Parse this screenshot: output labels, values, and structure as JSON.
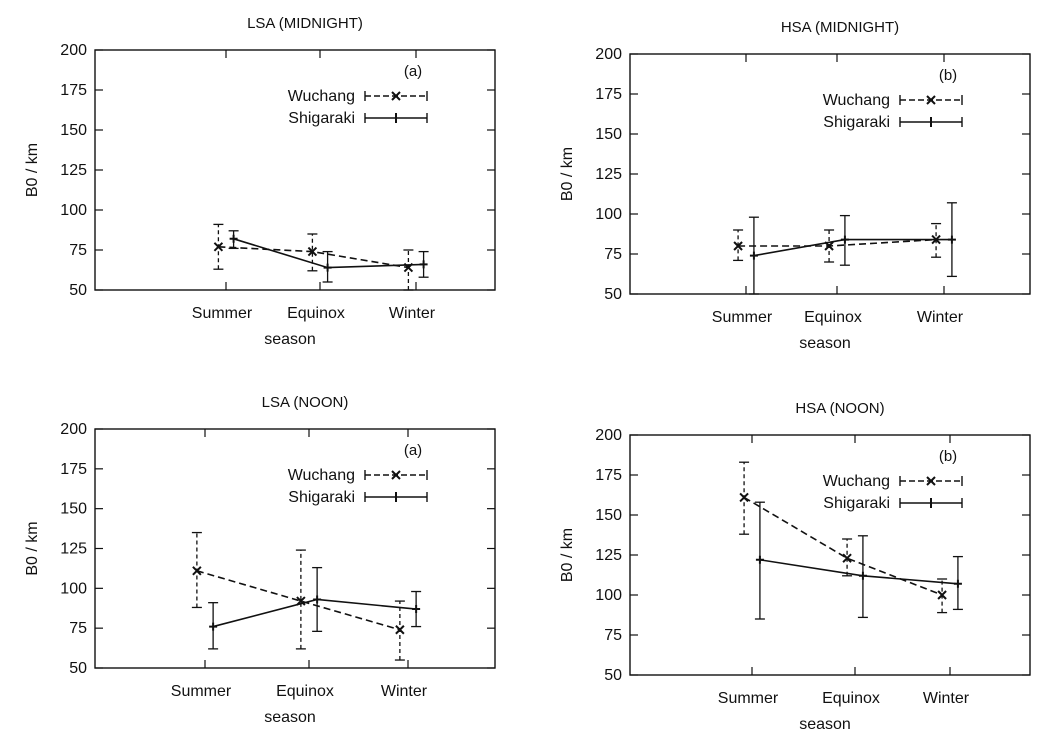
{
  "colors": {
    "ink": "#111111",
    "background": "#ffffff"
  },
  "chart_data": [
    {
      "type": "line",
      "title": "LSA (MIDNIGHT)",
      "panel_label": "(a)",
      "xlabel": "season",
      "ylabel": "B0 / km",
      "categories": [
        "Summer",
        "Equinox",
        "Winter"
      ],
      "ylim": [
        50,
        200
      ],
      "yticks": [
        50,
        75,
        100,
        125,
        150,
        175,
        200
      ],
      "legend": "top-right",
      "grid": false,
      "series": [
        {
          "name": "Wuchang",
          "style": "dashed",
          "marker": "x",
          "x_offset": -0.08,
          "values": [
            77,
            74,
            64
          ],
          "err_low": [
            63,
            62,
            50
          ],
          "err_high": [
            91,
            85,
            75
          ]
        },
        {
          "name": "Shigaraki",
          "style": "solid",
          "marker": "+",
          "x_offset": 0.08,
          "values": [
            82,
            64,
            66
          ],
          "err_low": [
            76,
            55,
            58
          ],
          "err_high": [
            87,
            74,
            74
          ]
        }
      ]
    },
    {
      "type": "line",
      "title": "HSA (MIDNIGHT)",
      "panel_label": "(b)",
      "xlabel": "season",
      "ylabel": "B0 / km",
      "categories": [
        "Summer",
        "Equinox",
        "Winter"
      ],
      "ylim": [
        50,
        200
      ],
      "yticks": [
        50,
        75,
        100,
        125,
        150,
        175,
        200
      ],
      "legend": "top-right",
      "grid": false,
      "series": [
        {
          "name": "Wuchang",
          "style": "dashed",
          "marker": "x",
          "x_offset": -0.08,
          "values": [
            80,
            80,
            84
          ],
          "err_low": [
            71,
            70,
            73
          ],
          "err_high": [
            90,
            90,
            94
          ]
        },
        {
          "name": "Shigaraki",
          "style": "solid",
          "marker": "+",
          "x_offset": 0.08,
          "values": [
            74,
            84,
            84
          ],
          "err_low": [
            50,
            68,
            61
          ],
          "err_high": [
            98,
            99,
            107
          ]
        }
      ]
    },
    {
      "type": "line",
      "title": "LSA (NOON)",
      "panel_label": "(a)",
      "xlabel": "season",
      "ylabel": "B0 / km",
      "categories": [
        "Summer",
        "Equinox",
        "Winter"
      ],
      "ylim": [
        50,
        200
      ],
      "yticks": [
        50,
        75,
        100,
        125,
        150,
        175,
        200
      ],
      "legend": "top-right",
      "grid": false,
      "series": [
        {
          "name": "Wuchang",
          "style": "dashed",
          "marker": "x",
          "x_offset": -0.08,
          "values": [
            111,
            92,
            74
          ],
          "err_low": [
            88,
            62,
            55
          ],
          "err_high": [
            135,
            124,
            92
          ]
        },
        {
          "name": "Shigaraki",
          "style": "solid",
          "marker": "+",
          "x_offset": 0.08,
          "values": [
            76,
            93,
            87
          ],
          "err_low": [
            62,
            73,
            76
          ],
          "err_high": [
            91,
            113,
            98
          ]
        }
      ]
    },
    {
      "type": "line",
      "title": "HSA (NOON)",
      "panel_label": "(b)",
      "xlabel": "season",
      "ylabel": "B0 / km",
      "categories": [
        "Summer",
        "Equinox",
        "Winter"
      ],
      "ylim": [
        50,
        200
      ],
      "yticks": [
        50,
        75,
        100,
        125,
        150,
        175,
        200
      ],
      "legend": "top-right",
      "grid": false,
      "series": [
        {
          "name": "Wuchang",
          "style": "dashed",
          "marker": "x",
          "x_offset": -0.08,
          "values": [
            161,
            123,
            100
          ],
          "err_low": [
            138,
            112,
            89
          ],
          "err_high": [
            183,
            135,
            110
          ]
        },
        {
          "name": "Shigaraki",
          "style": "solid",
          "marker": "+",
          "x_offset": 0.08,
          "values": [
            122,
            112,
            107
          ],
          "err_low": [
            85,
            86,
            91
          ],
          "err_high": [
            158,
            137,
            124
          ]
        }
      ]
    }
  ]
}
